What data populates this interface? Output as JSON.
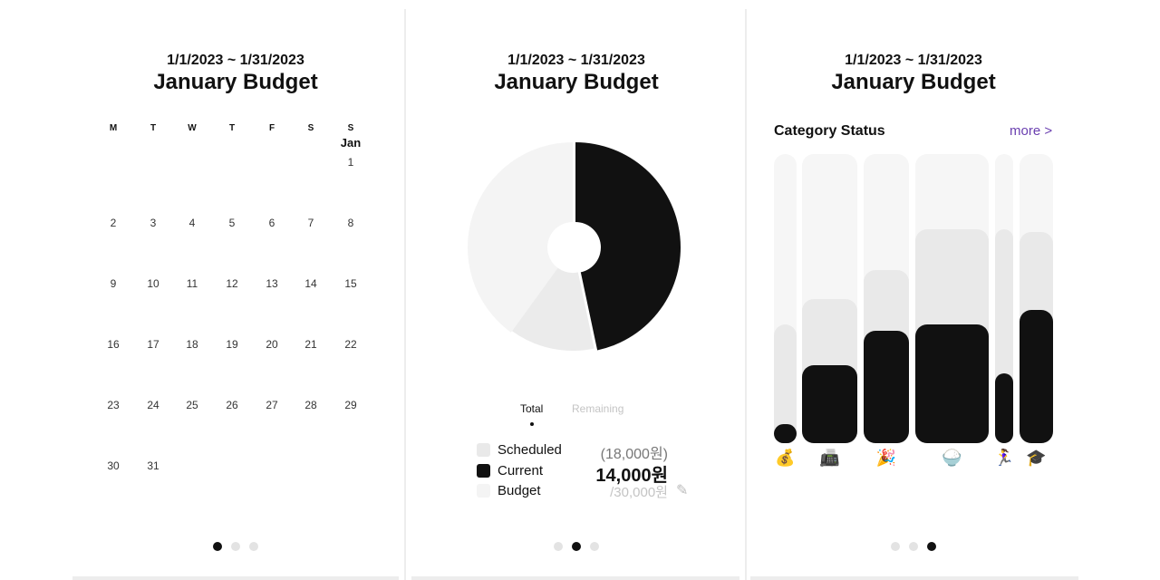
{
  "period": "1/1/2023 ~ 1/31/2023",
  "title": "January Budget",
  "calendar": {
    "weekdays": [
      "M",
      "T",
      "W",
      "T",
      "F",
      "S",
      "S"
    ],
    "month_label": "Jan",
    "days": [
      "1",
      "2",
      "3",
      "4",
      "5",
      "6",
      "7",
      "8",
      "9",
      "10",
      "11",
      "12",
      "13",
      "14",
      "15",
      "16",
      "17",
      "18",
      "19",
      "20",
      "21",
      "22",
      "23",
      "24",
      "25",
      "26",
      "27",
      "28",
      "29",
      "30",
      "31"
    ]
  },
  "summary": {
    "tabs": [
      {
        "label": "Total",
        "active": true
      },
      {
        "label": "Remaining",
        "active": false
      }
    ],
    "legend": [
      {
        "label": "Scheduled",
        "value": "(18,000원)",
        "color": "#e9e9e9"
      },
      {
        "label": "Current",
        "value": "14,000원",
        "color": "#111111"
      },
      {
        "label": "Budget",
        "value": "/30,000원",
        "color": "#f4f4f4"
      }
    ],
    "edit_icon": "pencil-icon",
    "chart": {
      "current": 14000,
      "scheduled": 18000,
      "budget": 30000
    }
  },
  "category_status": {
    "title": "Category Status",
    "more_label": "more >",
    "categories": [
      {
        "emoji": "💰",
        "current": 0.066,
        "scheduled": 0.41
      },
      {
        "emoji": "📠",
        "current": 0.27,
        "scheduled": 0.5
      },
      {
        "emoji": "🎉",
        "current": 0.39,
        "scheduled": 0.6
      },
      {
        "emoji": "🍚",
        "current": 0.41,
        "scheduled": 0.74
      },
      {
        "emoji": "🏃‍♀️",
        "current": 0.24,
        "scheduled": 0.74
      },
      {
        "emoji": "🎓",
        "current": 0.46,
        "scheduled": 0.73
      }
    ]
  },
  "pager": [
    {
      "active": 0
    },
    {
      "active": 1
    },
    {
      "active": 2
    }
  ]
}
